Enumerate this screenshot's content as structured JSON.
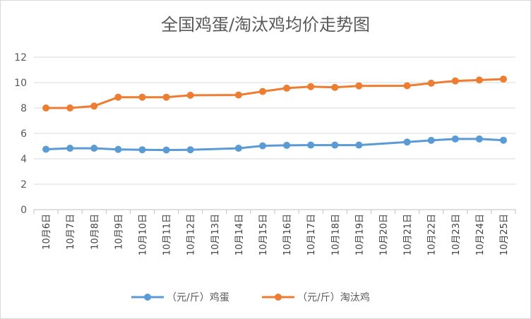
{
  "chart_data": {
    "type": "line",
    "title": "全国鸡蛋/淘汰鸡均价走势图",
    "xlabel": "",
    "ylabel": "",
    "ylim": [
      0,
      12
    ],
    "yticks": [
      0,
      2,
      4,
      6,
      8,
      10,
      12
    ],
    "grid": "horizontal",
    "legend": "bottom",
    "categories": [
      "10月6日",
      "10月7日",
      "10月8日",
      "10月9日",
      "10月10日",
      "10月11日",
      "10月12日",
      "10月13日",
      "10月14日",
      "10月15日",
      "10月16日",
      "10月17日",
      "10月18日",
      "10月19日",
      "10月20日",
      "10月21日",
      "10月22日",
      "10月23日",
      "10月24日",
      "10月25日"
    ],
    "series": [
      {
        "name": "（元/斤）鸡蛋",
        "color": "#5b9bd5",
        "values": [
          4.75,
          4.83,
          4.83,
          4.74,
          4.71,
          4.69,
          4.71,
          null,
          4.83,
          5.02,
          5.06,
          5.08,
          5.08,
          5.08,
          null,
          5.32,
          5.45,
          5.56,
          5.56,
          5.46
        ]
      },
      {
        "name": "（元/斤）淘汰鸡",
        "color": "#ed7d31",
        "values": [
          8.0,
          8.0,
          8.15,
          8.85,
          8.85,
          8.85,
          9.0,
          null,
          9.02,
          9.3,
          9.56,
          9.68,
          9.62,
          9.74,
          null,
          9.75,
          9.95,
          10.13,
          10.2,
          10.27
        ]
      }
    ]
  }
}
